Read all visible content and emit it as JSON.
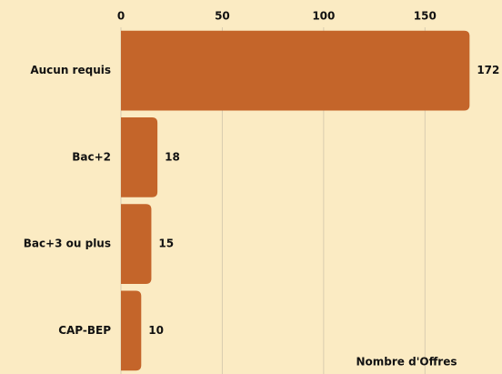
{
  "chart_data": {
    "type": "barh",
    "x_label": "Nombre d'Offres",
    "categories": [
      "Aucun requis",
      "Bac+2",
      "Bac+3 ou plus",
      "CAP-BEP"
    ],
    "values": [
      172,
      18,
      15,
      10
    ],
    "color": "#c4652a",
    "xlim": [
      0,
      188
    ],
    "xticks": [
      0,
      50,
      100,
      150
    ],
    "grid": true
  }
}
